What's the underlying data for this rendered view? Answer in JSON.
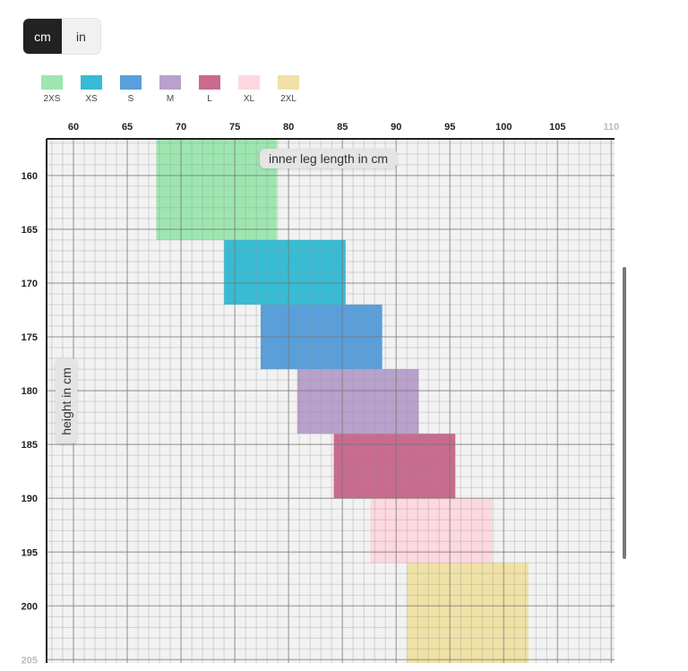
{
  "units": {
    "options": [
      "cm",
      "in"
    ],
    "selected": "cm"
  },
  "legend": [
    {
      "label": "2XS",
      "color": "#9de6b0"
    },
    {
      "label": "XS",
      "color": "#36bcd4"
    },
    {
      "label": "S",
      "color": "#589fdb"
    },
    {
      "label": "M",
      "color": "#b8a1cc"
    },
    {
      "label": "L",
      "color": "#c96a8e"
    },
    {
      "label": "XL",
      "color": "#fdd8e1"
    },
    {
      "label": "2XL",
      "color": "#f0e2a6"
    }
  ],
  "chart_data": {
    "type": "heatmap",
    "xlabel": "inner leg length in cm",
    "ylabel": "height in cm",
    "xlim": [
      57.5,
      110.3
    ],
    "ylim": [
      156.6,
      205.3
    ],
    "x_ticks": [
      60,
      65,
      70,
      75,
      80,
      85,
      90,
      95,
      100,
      105,
      110
    ],
    "y_ticks": [
      160,
      165,
      170,
      175,
      180,
      185,
      190,
      195,
      200,
      205
    ],
    "grid": true,
    "x_axis_position": "top",
    "regions": [
      {
        "size": "2XS",
        "leg": [
          67.7,
          78.9
        ],
        "height": [
          156.6,
          166
        ]
      },
      {
        "size": "XS",
        "leg": [
          74,
          85.3
        ],
        "height": [
          166,
          172
        ]
      },
      {
        "size": "S",
        "leg": [
          77.4,
          88.7
        ],
        "height": [
          172,
          178
        ]
      },
      {
        "size": "M",
        "leg": [
          80.8,
          92.1
        ],
        "height": [
          178,
          184
        ]
      },
      {
        "size": "L",
        "leg": [
          84.2,
          95.5
        ],
        "height": [
          184,
          190
        ]
      },
      {
        "size": "XL",
        "leg": [
          87.6,
          98.9
        ],
        "height": [
          190,
          196
        ]
      },
      {
        "size": "2XL",
        "leg": [
          91,
          102.3
        ],
        "height": [
          196,
          205.3
        ]
      }
    ]
  }
}
